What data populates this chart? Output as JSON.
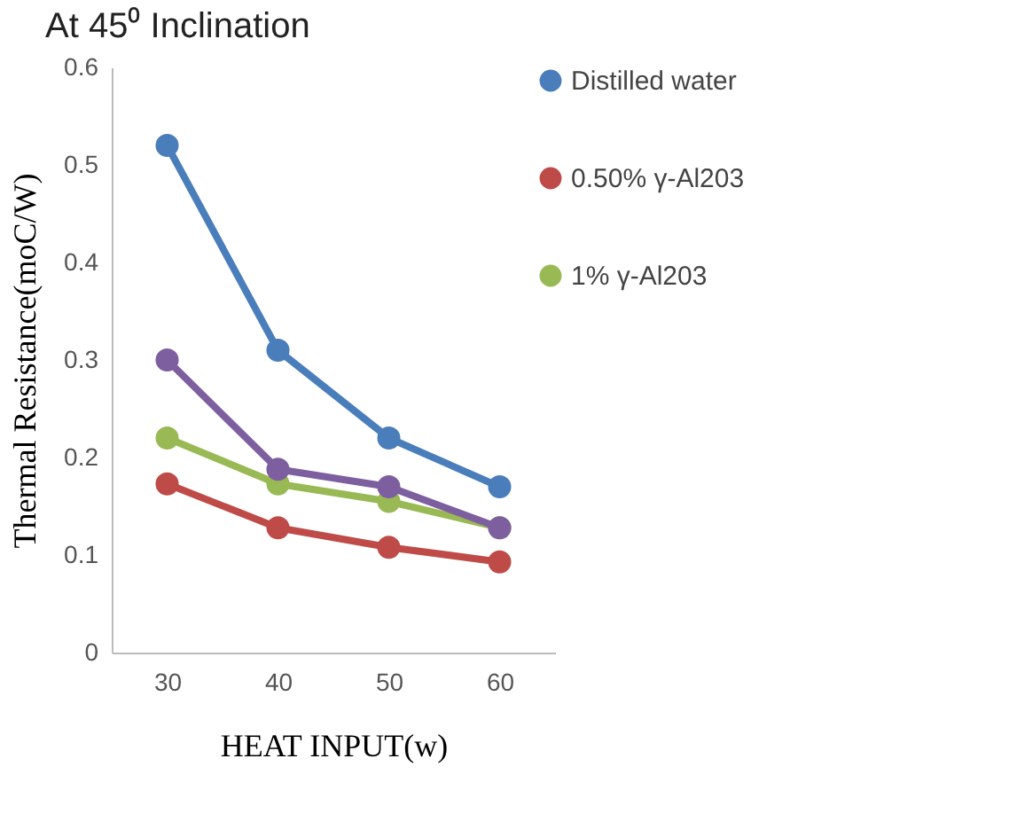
{
  "chart_data": {
    "type": "line",
    "title": "At 45⁰ Inclination",
    "xlabel": "HEAT INPUT(w)",
    "ylabel": "Thermal Resistance(moC/W)",
    "categories": [
      "30",
      "40",
      "50",
      "60"
    ],
    "series": [
      {
        "name": "Distilled water",
        "color": "#4a7ebb",
        "values": [
          0.52,
          0.31,
          0.22,
          0.17
        ]
      },
      {
        "name": "0.50% γ-Al203",
        "color": "#be4b48",
        "values": [
          0.173,
          0.128,
          0.108,
          0.093
        ]
      },
      {
        "name": "1% γ-Al203",
        "color": "#98b954",
        "values": [
          0.22,
          0.173,
          0.155,
          0.128
        ]
      },
      {
        "color": "#7d5fa0",
        "values": [
          0.3,
          0.188,
          0.17,
          0.128
        ]
      }
    ],
    "ylim": [
      0,
      0.6
    ],
    "yticks": [
      0,
      0.1,
      0.2,
      0.3,
      0.4,
      0.5,
      0.6
    ],
    "grid": false,
    "legend": "right",
    "marker": "circle",
    "line_style": "solid"
  }
}
